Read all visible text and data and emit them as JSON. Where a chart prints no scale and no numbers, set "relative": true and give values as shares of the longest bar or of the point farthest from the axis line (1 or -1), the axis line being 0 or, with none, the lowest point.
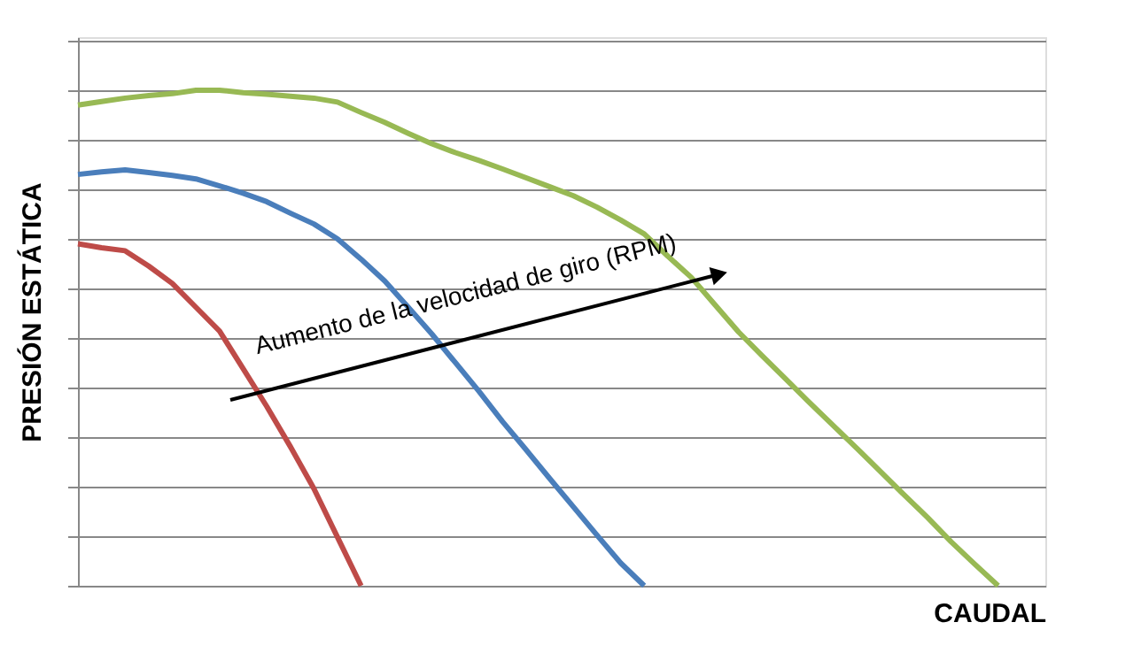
{
  "chart_data": {
    "type": "line",
    "relative": true,
    "xlabel": "CAUDAL",
    "ylabel": "PRESIÓN ESTÁTICA",
    "grid": "y",
    "tick_labels": false,
    "marker": "none",
    "line_style": "solid",
    "categories": [
      null,
      null,
      null,
      null,
      null,
      null,
      null,
      null,
      null,
      null,
      null,
      null,
      null,
      null,
      null,
      null,
      null,
      null,
      null,
      null,
      null,
      null,
      null,
      null,
      null,
      null,
      null,
      null,
      null,
      null,
      null,
      null,
      null,
      null,
      null,
      null,
      null,
      null,
      null,
      null,
      null,
      null
    ],
    "annotations": [
      "Aumento de la velocidad de giro (RPM)"
    ],
    "series": [
      {
        "color": "#be4b48",
        "values": [
          0.69,
          0.682,
          0.676,
          0.645,
          0.61,
          0.562,
          0.514,
          0.438,
          0.362,
          0.281,
          0.196,
          0.098,
          0,
          null,
          null,
          null,
          null,
          null,
          null,
          null,
          null,
          null,
          null,
          null,
          null,
          null,
          null,
          null,
          null,
          null,
          null,
          null,
          null,
          null,
          null,
          null,
          null,
          null,
          null,
          null,
          null,
          null
        ]
      },
      {
        "color": "#4a7ebb",
        "values": [
          0.83,
          0.835,
          0.839,
          0.834,
          0.828,
          0.821,
          0.807,
          0.792,
          0.775,
          0.752,
          0.73,
          0.7,
          0.659,
          0.615,
          0.562,
          0.508,
          0.45,
          0.392,
          0.331,
          0.274,
          0.216,
          0.159,
          0.102,
          0.046,
          0,
          null,
          null,
          null,
          null,
          null,
          null,
          null,
          null,
          null,
          null,
          null,
          null,
          null,
          null,
          null,
          null,
          null
        ]
      },
      {
        "color": "#98b954",
        "values": [
          0.97,
          0.977,
          0.984,
          0.989,
          0.993,
          1,
          1,
          0.995,
          0.992,
          0.988,
          0.984,
          0.976,
          0.955,
          0.935,
          0.913,
          0.892,
          0.874,
          0.858,
          0.841,
          0.823,
          0.805,
          0.787,
          0.764,
          0.738,
          0.71,
          0.665,
          0.622,
          0.567,
          0.512,
          0.464,
          0.417,
          0.37,
          0.324,
          0.278,
          0.231,
          0.184,
          0.138,
          0.089,
          0.044,
          0,
          null,
          null
        ]
      }
    ]
  }
}
